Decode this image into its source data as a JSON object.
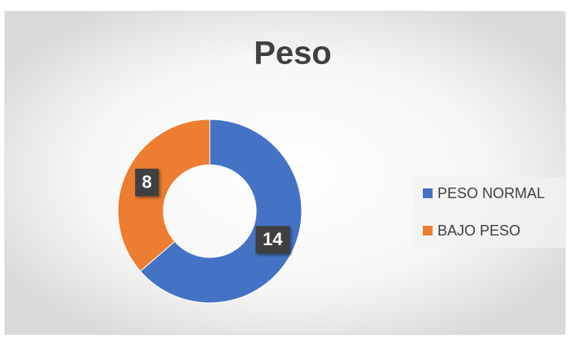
{
  "chart_data": {
    "type": "donut",
    "title": "Peso",
    "categories": [
      "PESO NORMAL",
      "BAJO PESO"
    ],
    "values": [
      14,
      8
    ],
    "colors": [
      "#4472c4",
      "#ed7d31"
    ],
    "legend": "right"
  }
}
